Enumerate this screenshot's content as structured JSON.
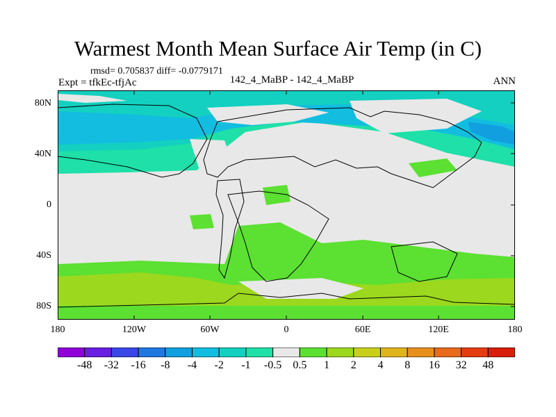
{
  "title": "Warmest Month Mean Surface Air Temp (in C)",
  "stats": "rmsd= 0.705837 diff= -0.0779171",
  "expt": "Expt = tfkEc-tfjAc",
  "center_label": "142_4_MaBP - 142_4_MaBP",
  "period": "ANN",
  "lat_labels": [
    "80N",
    "40N",
    "0",
    "40S",
    "80S"
  ],
  "lon_labels": [
    "180",
    "120W",
    "60W",
    "0",
    "60E",
    "120E",
    "180"
  ],
  "colorbar": {
    "labels": [
      "-48",
      "-32",
      "-16",
      "-8",
      "-4",
      "-2",
      "-1",
      "-0.5",
      "0.5",
      "1",
      "2",
      "4",
      "8",
      "16",
      "32",
      "48"
    ],
    "colors": [
      "#9000d8",
      "#6a1ee0",
      "#3a47e6",
      "#1f78e0",
      "#119fe0",
      "#12bde0",
      "#14d0c0",
      "#1ee0a8",
      "#e8e8e8",
      "#5ce032",
      "#9cd81e",
      "#c8d01a",
      "#e0b41c",
      "#e8901e",
      "#e86a1c",
      "#e43c10",
      "#d81e0c"
    ]
  },
  "map_colors": {
    "neutral": "#e8e8e8",
    "light_cool": "#1ee0a8",
    "cool": "#14d0c0",
    "cooler": "#12bde0",
    "coolest": "#119fe0",
    "warm": "#5ce032",
    "warmer": "#9cd81e"
  }
}
